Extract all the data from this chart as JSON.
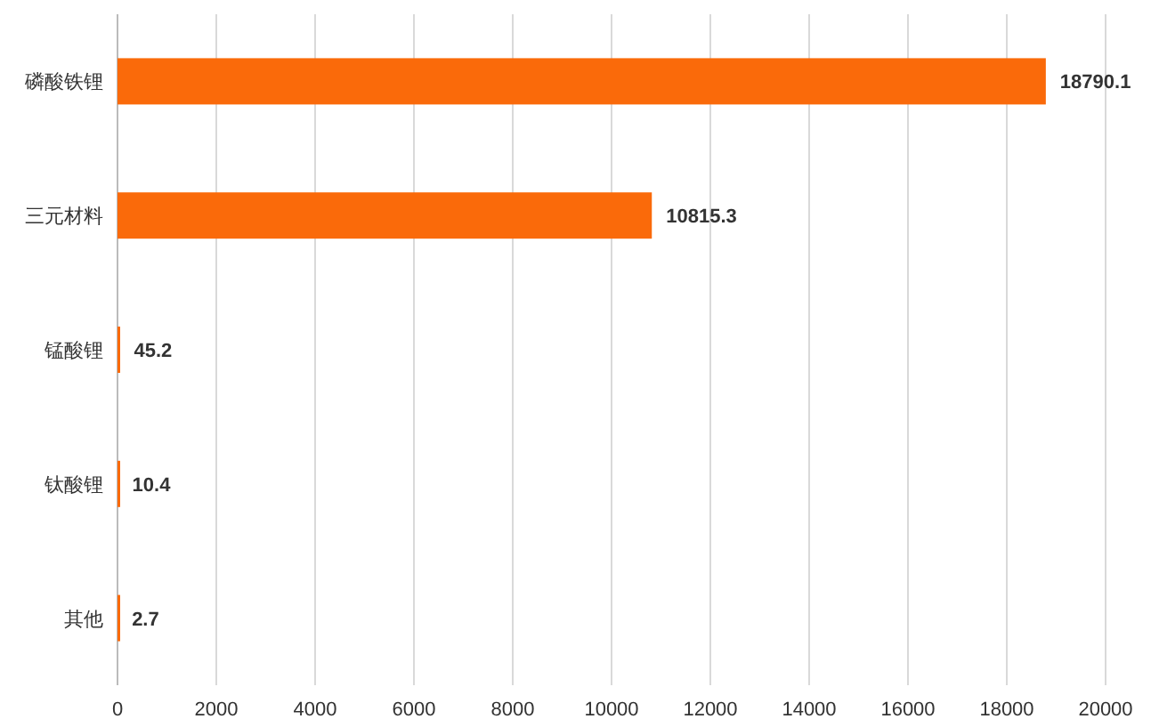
{
  "chart_data": {
    "type": "bar",
    "orientation": "horizontal",
    "categories": [
      "磷酸铁锂",
      "三元材料",
      "锰酸锂",
      "钛酸锂",
      "其他"
    ],
    "values": [
      18790.1,
      10815.3,
      45.2,
      10.4,
      2.7
    ],
    "color": "#fa6a0a",
    "xlim": [
      0,
      20000
    ],
    "xticks": [
      0,
      2000,
      4000,
      6000,
      8000,
      10000,
      12000,
      14000,
      16000,
      18000,
      20000
    ],
    "grid": "x",
    "data_labels": true
  }
}
